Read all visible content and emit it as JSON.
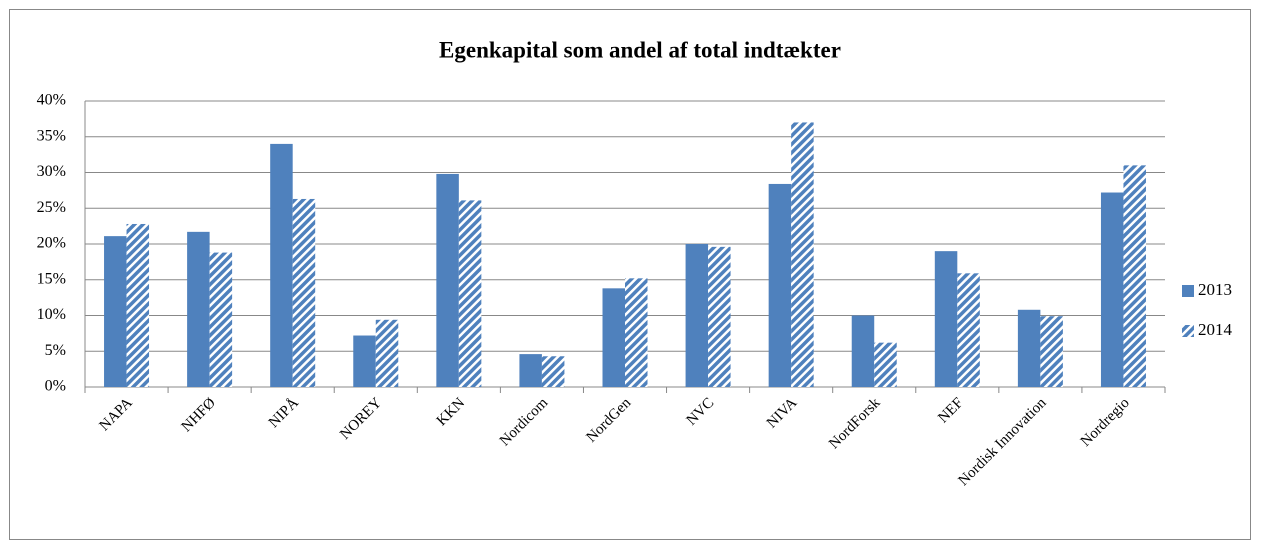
{
  "chart_data": {
    "type": "bar",
    "title": "Egenkapital som andel af total indtækter",
    "categories": [
      "NAPA",
      "NHFØ",
      "NIPÅ",
      "NOREY",
      "KKN",
      "Nordicom",
      "NordGen",
      "NVC",
      "NIVA",
      "NordForsk",
      "NEF",
      "Nordisk Innovation",
      "Nordregio"
    ],
    "series": [
      {
        "name": "2013",
        "color": "#4f81bd",
        "pattern": "solid",
        "values": [
          21.1,
          21.7,
          34.0,
          7.2,
          29.8,
          4.6,
          13.8,
          20.0,
          28.4,
          10.0,
          19.0,
          10.8,
          27.2
        ]
      },
      {
        "name": "2014",
        "color": "#4f81bd",
        "pattern": "hatched",
        "values": [
          22.8,
          18.8,
          26.3,
          9.4,
          26.1,
          4.3,
          15.2,
          19.6,
          37.0,
          6.2,
          15.9,
          9.9,
          31.0
        ]
      }
    ],
    "ylim": [
      0,
      40
    ],
    "yticks": [
      {
        "value": 0,
        "label": "0%"
      },
      {
        "value": 5,
        "label": "5%"
      },
      {
        "value": 10,
        "label": "10%"
      },
      {
        "value": 15,
        "label": "15%"
      },
      {
        "value": 20,
        "label": "20%"
      },
      {
        "value": 25,
        "label": "25%"
      },
      {
        "value": 30,
        "label": "30%"
      },
      {
        "value": 35,
        "label": "35%"
      },
      {
        "value": 40,
        "label": "40%"
      }
    ],
    "grid": true,
    "legend": "right"
  }
}
